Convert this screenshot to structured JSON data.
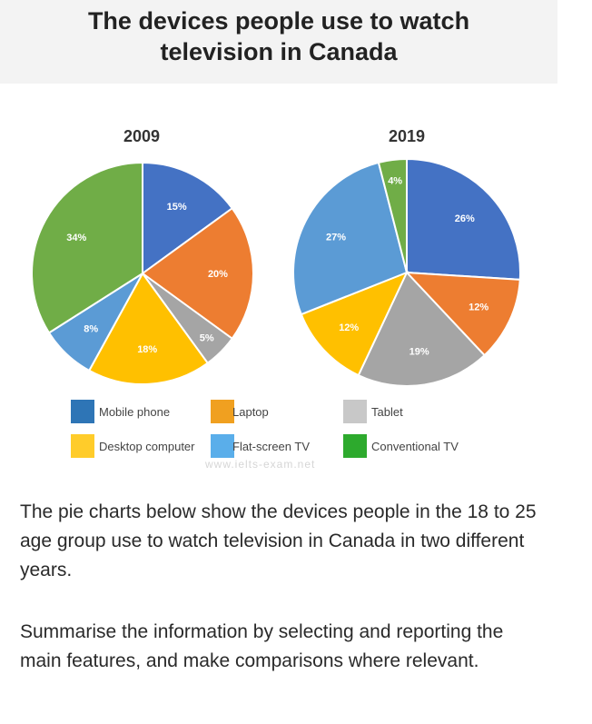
{
  "title_line1": "The devices people use to watch",
  "title_line2": "television in Canada",
  "watermark": "www.ielts-exam.net",
  "paragraph1": "The pie charts below show the devices people in the 18 to 25 age group use to watch television in Canada in two different years.",
  "paragraph2": "Summarise the information by selecting and reporting the main features, and make comparisons where relevant.",
  "legend": [
    {
      "label": "Mobile phone",
      "color": "#2e75b6"
    },
    {
      "label": "Laptop",
      "color": "#f0a020"
    },
    {
      "label": "Tablet",
      "color": "#c8c8c8"
    },
    {
      "label": "Desktop computer",
      "color": "#ffcc2a"
    },
    {
      "label": "Flat-screen TV",
      "color": "#5aaeea"
    },
    {
      "label": "Conventional TV",
      "color": "#2daa2d"
    }
  ],
  "chart_data": [
    {
      "type": "pie",
      "title": "2009",
      "slices": [
        {
          "name": "Mobile phone",
          "value": 15,
          "label": "15%",
          "color": "#4472c4"
        },
        {
          "name": "Laptop",
          "value": 20,
          "label": "20%",
          "color": "#ed7d31"
        },
        {
          "name": "Tablet",
          "value": 5,
          "label": "5%",
          "color": "#a5a5a5"
        },
        {
          "name": "Desktop computer",
          "value": 18,
          "label": "18%",
          "color": "#ffc000"
        },
        {
          "name": "Flat-screen TV",
          "value": 8,
          "label": "8%",
          "color": "#5b9bd5"
        },
        {
          "name": "Conventional TV",
          "value": 34,
          "label": "34%",
          "color": "#70ad47"
        }
      ]
    },
    {
      "type": "pie",
      "title": "2019",
      "slices": [
        {
          "name": "Mobile phone",
          "value": 26,
          "label": "26%",
          "color": "#4472c4"
        },
        {
          "name": "Laptop",
          "value": 12,
          "label": "12%",
          "color": "#ed7d31"
        },
        {
          "name": "Tablet",
          "value": 19,
          "label": "19%",
          "color": "#a5a5a5"
        },
        {
          "name": "Desktop computer",
          "value": 12,
          "label": "12%",
          "color": "#ffc000"
        },
        {
          "name": "Flat-screen TV",
          "value": 27,
          "label": "27%",
          "color": "#5b9bd5"
        },
        {
          "name": "Conventional TV",
          "value": 4,
          "label": "4%",
          "color": "#70ad47"
        }
      ]
    }
  ]
}
